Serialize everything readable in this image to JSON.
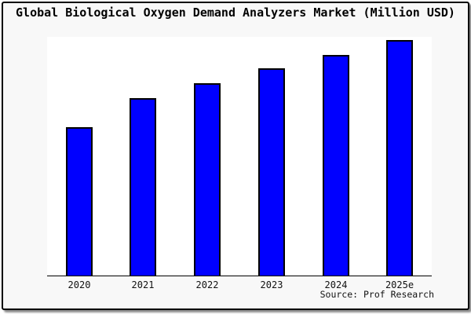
{
  "title": "Global Biological Oxygen Demand Analyzers Market (Million USD)",
  "source_credit": "Source: Prof Research",
  "colors": {
    "canvas_bg": "#f8f8f8",
    "plot_bg": "#ffffff",
    "bar_fill": "#0000ff",
    "bar_border": "#000000",
    "frame_border": "#000000",
    "text": "#111111"
  },
  "chart_data": {
    "type": "bar",
    "title": "Global Biological Oxygen Demand Analyzers Market (Million USD)",
    "categories": [
      "2020",
      "2021",
      "2022",
      "2023",
      "2024",
      "2025e"
    ],
    "values": [
      63,
      75.3,
      81.7,
      88,
      93.7,
      100
    ],
    "value_note": "No y-axis or data labels shown in image; values are relative bar heights normalized so 2025e = 100",
    "xlabel": "",
    "ylabel": "",
    "ylim": [
      0,
      101.3
    ],
    "grid": false,
    "legend": false,
    "bar_color": "#0000ff",
    "bar_border_color": "#000000"
  }
}
